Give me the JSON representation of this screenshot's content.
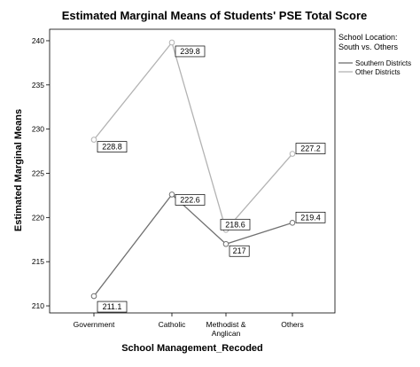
{
  "chart_data": {
    "type": "line",
    "title": "Estimated Marginal Means of Students' PSE Total Score",
    "xlabel": "School Management_Recoded",
    "ylabel": "Estimated Marginal Means",
    "categories": [
      "Government",
      "Catholic",
      "Methodist &\nAnglican",
      "Others"
    ],
    "ylim": [
      209.2,
      241.3
    ],
    "yticks": [
      210,
      215,
      220,
      225,
      230,
      235,
      240
    ],
    "legend": {
      "title_lines": [
        "School Location:",
        "South vs. Others"
      ],
      "placement": "right"
    },
    "series": [
      {
        "name": "Southern Districts",
        "color": "#707070",
        "values": [
          211.1,
          222.6,
          217.0,
          219.4
        ],
        "labels": [
          "211.1",
          "222.6",
          "217",
          "219.4"
        ]
      },
      {
        "name": "Other Districts",
        "color": "#b3b3b3",
        "values": [
          228.8,
          239.8,
          218.6,
          227.2
        ],
        "labels": [
          "228.8",
          "239.8",
          "218.6",
          "227.2"
        ]
      }
    ]
  }
}
